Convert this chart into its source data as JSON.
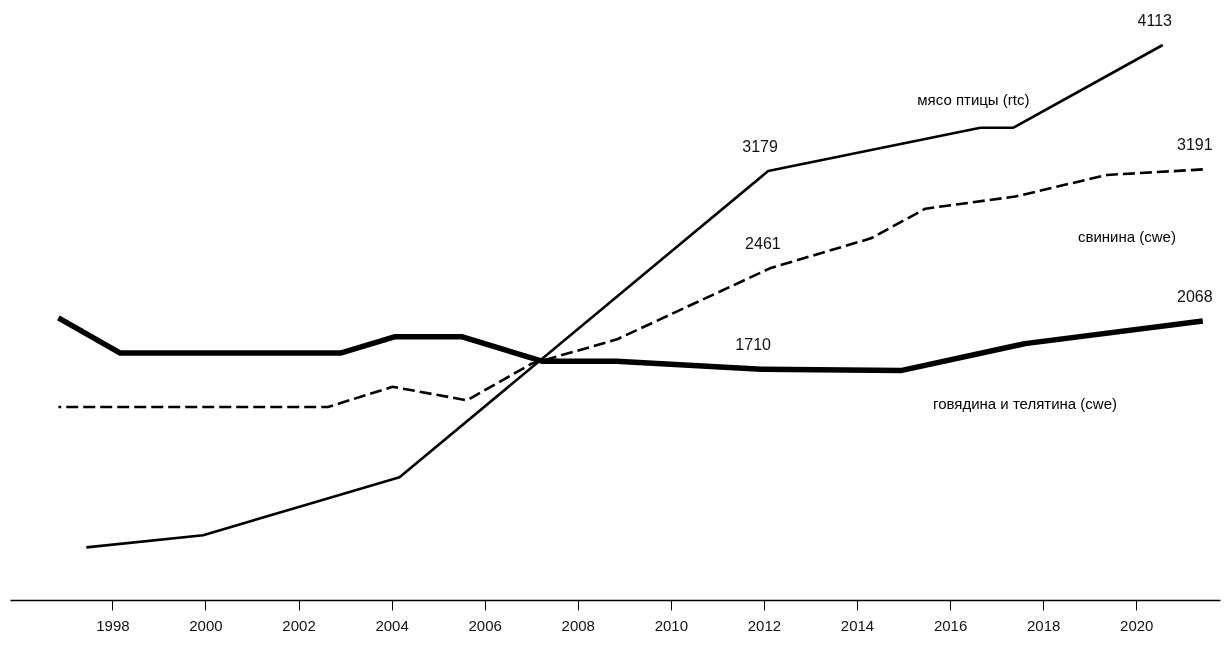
{
  "chart_data": {
    "type": "line",
    "xlim": [
      1995.8,
      2021.8
    ],
    "xticks": [
      1998,
      2000,
      2002,
      2004,
      2006,
      2008,
      2010,
      2012,
      2014,
      2016,
      2018,
      2020
    ],
    "tick_labels": "x",
    "grid": false,
    "series": [
      {
        "name": "мясо птицы (rtc)",
        "color": "#000000",
        "line_style": "solid",
        "x": [
          1997.44,
          1999.95,
          2004.17,
          2012.09,
          2016.65,
          2017.36,
          2020.57
        ],
        "values": [
          390,
          480,
          910,
          3179,
          3500,
          3500,
          4113
        ],
        "value_labels": [
          null,
          null,
          null,
          "3179",
          null,
          null,
          "4113"
        ]
      },
      {
        "name": "свинина (cwe)",
        "color": "#000000",
        "line_style": "dashed",
        "x": [
          1996.84,
          2002.63,
          2004.02,
          2005.62,
          2007.0,
          2008.83,
          2012.15,
          2014.3,
          2015.47,
          2017.4,
          2019.37,
          2021.43
        ],
        "values": [
          1430,
          1430,
          1580,
          1480,
          1750,
          1930,
          2461,
          2680,
          2900,
          2990,
          3150,
          3191
        ],
        "value_labels": [
          null,
          null,
          null,
          null,
          null,
          null,
          "2461",
          null,
          null,
          null,
          null,
          "3191"
        ]
      },
      {
        "name": "говядина и телятина (cwe)",
        "color": "#000000",
        "line_style": "solid",
        "x": [
          1996.84,
          1998.17,
          2002.9,
          2004.06,
          2005.52,
          2007.23,
          2008.83,
          2011.94,
          2014.94,
          2017.61,
          2021.43
        ],
        "values": [
          2090,
          1830,
          1830,
          1950,
          1950,
          1770,
          1770,
          1710,
          1700,
          1900,
          2068
        ],
        "value_labels": [
          null,
          null,
          null,
          null,
          null,
          null,
          null,
          "1710",
          null,
          null,
          "2068"
        ]
      }
    ]
  }
}
